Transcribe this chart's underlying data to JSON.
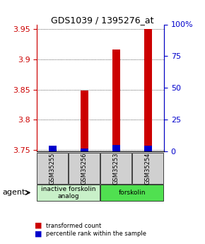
{
  "title": "GDS1039 / 1395276_at",
  "samples": [
    "GSM35255",
    "GSM35256",
    "GSM35253",
    "GSM35254"
  ],
  "red_values": [
    3.752,
    3.848,
    3.917,
    3.95
  ],
  "blue_values": [
    3.757,
    3.752,
    3.758,
    3.757
  ],
  "ylim": [
    3.748,
    3.958
  ],
  "y_ticks_left": [
    3.75,
    3.8,
    3.85,
    3.9,
    3.95
  ],
  "y_ticks_right": [
    0,
    25,
    50,
    75,
    100
  ],
  "y_right_labels": [
    "0",
    "25",
    "50",
    "75",
    "100%"
  ],
  "bar_bottom": 3.748,
  "groups": [
    {
      "label": "inactive forskolin\nanalog",
      "samples": [
        0,
        1
      ],
      "color": "#c8f0c8"
    },
    {
      "label": "forskolin",
      "samples": [
        2,
        3
      ],
      "color": "#50e050"
    }
  ],
  "agent_label": "agent",
  "legend_red": "transformed count",
  "legend_blue": "percentile rank within the sample",
  "red_color": "#cc0000",
  "blue_color": "#0000cc",
  "bar_width": 0.6,
  "sample_box_color": "#d0d0d0",
  "title_color": "#000000",
  "left_tick_color": "#cc0000",
  "right_tick_color": "#0000cc"
}
